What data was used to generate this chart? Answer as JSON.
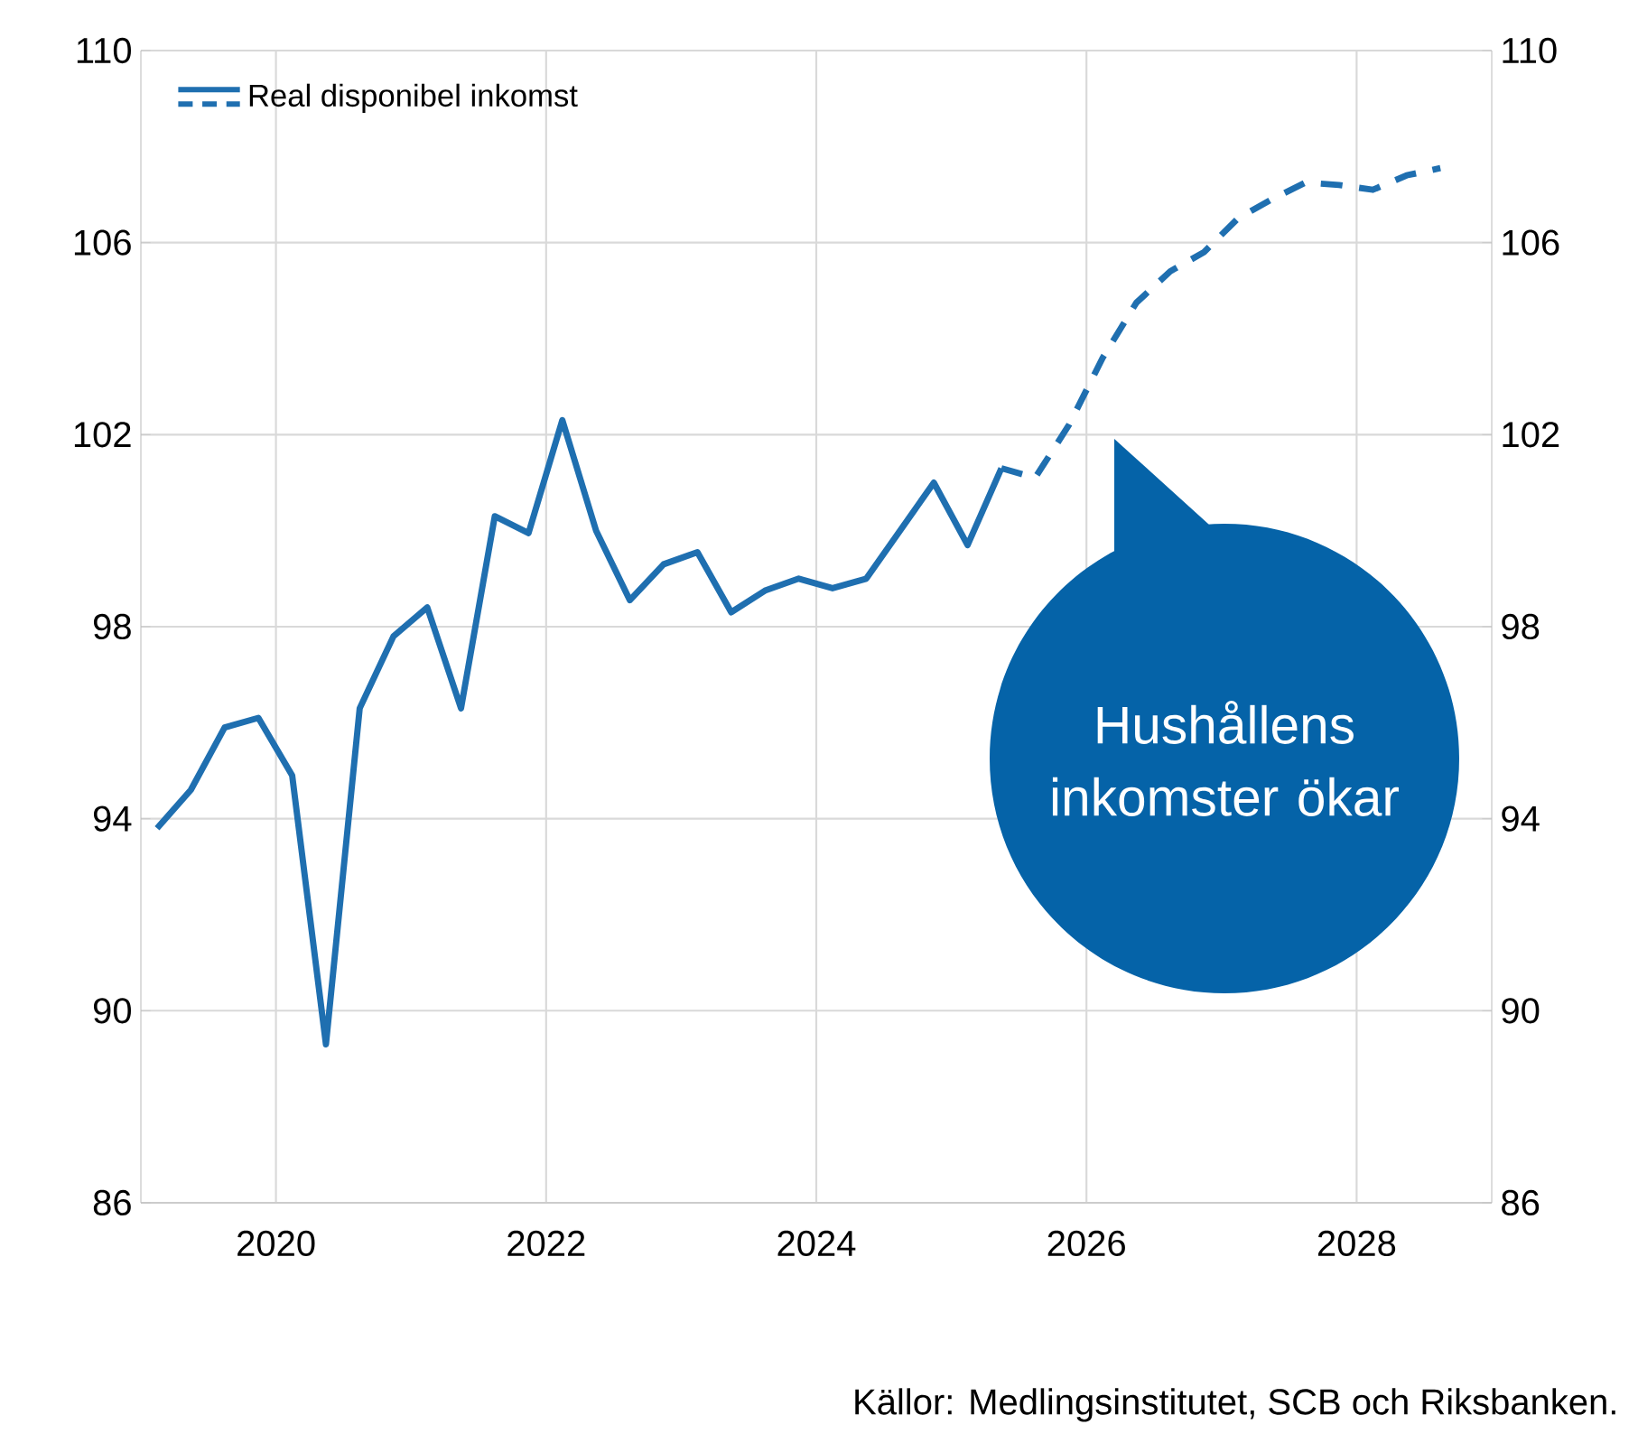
{
  "chart_data": {
    "type": "line",
    "x": [
      2019.12,
      2019.37,
      2019.62,
      2019.87,
      2020.12,
      2020.37,
      2020.62,
      2020.87,
      2021.12,
      2021.37,
      2021.62,
      2021.87,
      2022.12,
      2022.37,
      2022.62,
      2022.87,
      2023.12,
      2023.37,
      2023.62,
      2023.87,
      2024.12,
      2024.37,
      2024.62,
      2024.87,
      2025.12,
      2025.37
    ],
    "series": [
      {
        "name": "Real disponibel inkomst",
        "color": "#1f6fb0",
        "line_style": "solid",
        "values": [
          93.8,
          94.6,
          95.9,
          96.1,
          94.9,
          89.3,
          96.3,
          97.8,
          98.4,
          96.3,
          100.3,
          99.95,
          102.3,
          100.0,
          98.55,
          99.3,
          99.55,
          98.3,
          98.75,
          99.0,
          98.8,
          99.0,
          100.0,
          101.0,
          99.7,
          101.3
        ]
      },
      {
        "color": "#1f6fb0",
        "line_style": "dashed",
        "x": [
          2025.37,
          2025.62,
          2025.87,
          2026.12,
          2026.37,
          2026.62,
          2026.87,
          2027.12,
          2027.37,
          2027.62,
          2027.87,
          2028.12,
          2028.37,
          2028.62
        ],
        "values": [
          101.3,
          101.1,
          102.2,
          103.6,
          104.75,
          105.4,
          105.8,
          106.5,
          106.9,
          107.25,
          107.2,
          107.1,
          107.4,
          107.55
        ]
      }
    ],
    "xlim": [
      2019.0,
      2029.0
    ],
    "xticks": [
      2020,
      2022,
      2024,
      2026,
      2028
    ],
    "ylim": [
      86,
      110
    ],
    "yticks": [
      86,
      90,
      94,
      98,
      102,
      106,
      110
    ],
    "y2lim": [
      86,
      110
    ],
    "y2ticks": [
      86,
      90,
      94,
      98,
      102,
      106,
      110
    ],
    "grid": true,
    "legend": "top left",
    "annotations": [
      "Hushållens inkomster ökar",
      "Källor: Medlingsinstitutet, SCB och Riksbanken."
    ]
  }
}
